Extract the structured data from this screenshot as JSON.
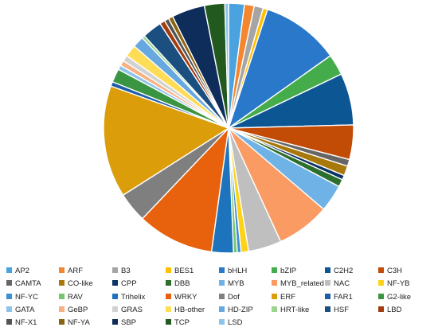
{
  "chart_data": {
    "type": "pie",
    "title": "",
    "legend_placement": "bottom",
    "slices": [
      {
        "label": "AP2",
        "value": 2.1,
        "color": "#4aa3df"
      },
      {
        "label": "ARF",
        "value": 1.3,
        "color": "#f4862f"
      },
      {
        "label": "B3",
        "value": 1.2,
        "color": "#a5a5a5"
      },
      {
        "label": "BES1",
        "value": 0.6,
        "color": "#ffc000"
      },
      {
        "label": "bHLH",
        "value": 10.4,
        "color": "#2a78c9"
      },
      {
        "label": "bZIP",
        "value": 2.8,
        "color": "#44ac4a"
      },
      {
        "label": "C2H2",
        "value": 6.9,
        "color": "#0d5694"
      },
      {
        "label": "C3H",
        "value": 4.6,
        "color": "#c24b06"
      },
      {
        "label": "CAMTA",
        "value": 0.9,
        "color": "#666666"
      },
      {
        "label": "CO-like",
        "value": 1.3,
        "color": "#a9780a"
      },
      {
        "label": "CPP",
        "value": 0.6,
        "color": "#0b3366"
      },
      {
        "label": "DBB",
        "value": 1.0,
        "color": "#2c6e2c"
      },
      {
        "label": "MYB",
        "value": 3.6,
        "color": "#6fb2e6"
      },
      {
        "label": "MYB_related",
        "value": 7.1,
        "color": "#f99b62"
      },
      {
        "label": "NAC",
        "value": 4.4,
        "color": "#bfbfbf"
      },
      {
        "label": "NF-YB",
        "value": 1.0,
        "color": "#ffd21a"
      },
      {
        "label": "NF-YC",
        "value": 0.5,
        "color": "#3b8fd6"
      },
      {
        "label": "RAV",
        "value": 0.5,
        "color": "#74c56c"
      },
      {
        "label": "Trihelix",
        "value": 2.9,
        "color": "#1d73bc"
      },
      {
        "label": "WRKY",
        "value": 10.2,
        "color": "#e8620e"
      },
      {
        "label": "Dof",
        "value": 4.0,
        "color": "#7f7f7f"
      },
      {
        "label": "ERF",
        "value": 14.9,
        "color": "#db9d0a"
      },
      {
        "label": "FAR1",
        "value": 0.6,
        "color": "#1e5ea8"
      },
      {
        "label": "G2-like",
        "value": 1.8,
        "color": "#3a9542"
      },
      {
        "label": "GATA",
        "value": 0.6,
        "color": "#8ec3ea"
      },
      {
        "label": "GeBP",
        "value": 0.7,
        "color": "#f8b084"
      },
      {
        "label": "GRAS",
        "value": 0.8,
        "color": "#d2d2d2"
      },
      {
        "label": "HB-other",
        "value": 1.6,
        "color": "#ffdc55"
      },
      {
        "label": "HD-ZIP",
        "value": 1.5,
        "color": "#66a8df"
      },
      {
        "label": "HRT-like",
        "value": 0.4,
        "color": "#9bd48f"
      },
      {
        "label": "HSF",
        "value": 2.6,
        "color": "#1b4f80"
      },
      {
        "label": "LBD",
        "value": 0.7,
        "color": "#a13c10"
      },
      {
        "label": "NF-X1",
        "value": 0.6,
        "color": "#545454"
      },
      {
        "label": "NF-YA",
        "value": 0.6,
        "color": "#8a6310"
      },
      {
        "label": "SBP",
        "value": 4.4,
        "color": "#0f2d5a"
      },
      {
        "label": "TCP",
        "value": 2.7,
        "color": "#21591f"
      },
      {
        "label": "LSD",
        "value": 0.5,
        "color": "#8cc5ee"
      }
    ]
  }
}
